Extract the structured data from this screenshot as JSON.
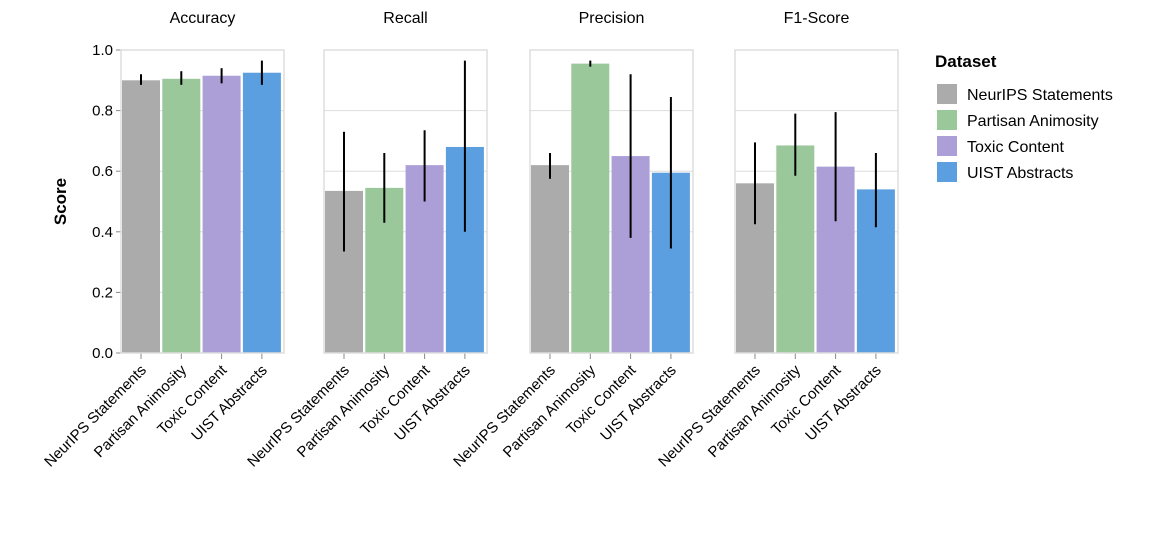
{
  "chart_data": {
    "type": "bar",
    "panels": [
      "Accuracy",
      "Recall",
      "Precision",
      "F1-Score"
    ],
    "categories": [
      "NeurIPS Statements",
      "Partisan Animosity",
      "Toxic Content",
      "UIST Abstracts"
    ],
    "ylabel": "Score",
    "ylim": [
      0,
      1
    ],
    "yticks": [
      "0.0",
      "0.2",
      "0.4",
      "0.6",
      "0.8",
      "1.0"
    ],
    "grid": true,
    "legend": {
      "title": "Dataset",
      "position": "right",
      "entries": [
        "NeurIPS Statements",
        "Partisan Animosity",
        "Toxic Content",
        "UIST Abstracts"
      ]
    },
    "colors": [
      "#ababab",
      "#9bc89b",
      "#ac9fd8",
      "#5b9fe0"
    ],
    "series": [
      {
        "panel": "Accuracy",
        "values": [
          0.9,
          0.905,
          0.915,
          0.925
        ],
        "err_low": [
          0.885,
          0.885,
          0.89,
          0.885
        ],
        "err_high": [
          0.92,
          0.93,
          0.94,
          0.965
        ]
      },
      {
        "panel": "Recall",
        "values": [
          0.535,
          0.545,
          0.62,
          0.68
        ],
        "err_low": [
          0.335,
          0.43,
          0.5,
          0.4
        ],
        "err_high": [
          0.73,
          0.66,
          0.735,
          0.965
        ]
      },
      {
        "panel": "Precision",
        "values": [
          0.62,
          0.955,
          0.65,
          0.595
        ],
        "err_low": [
          0.575,
          0.945,
          0.38,
          0.345
        ],
        "err_high": [
          0.66,
          0.965,
          0.92,
          0.845
        ]
      },
      {
        "panel": "F1-Score",
        "values": [
          0.56,
          0.685,
          0.615,
          0.54
        ],
        "err_low": [
          0.425,
          0.585,
          0.435,
          0.415
        ],
        "err_high": [
          0.695,
          0.79,
          0.795,
          0.66
        ]
      }
    ]
  }
}
